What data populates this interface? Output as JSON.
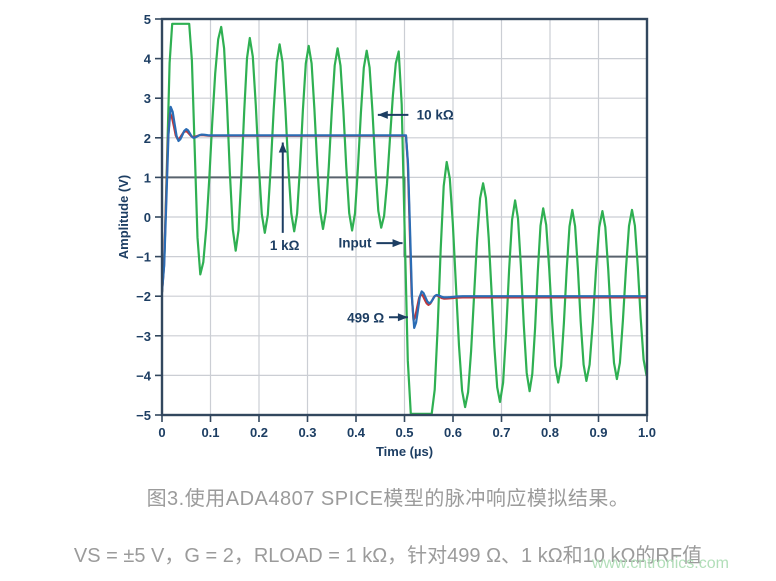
{
  "figure": {
    "caption": "图3.使用ADA4807 SPICE模型的脉冲响应模拟结果。",
    "conditions": "VS = ±5 V，G = 2，RLOAD = 1 kΩ，针对499 Ω、1 kΩ和10 kΩ的RF值",
    "watermark": "www.cntronics.com"
  },
  "chart_data": {
    "type": "line",
    "title": "",
    "xlabel": "Time (µs)",
    "ylabel": "Amplitude (V)",
    "xlim": [
      0,
      1
    ],
    "ylim": [
      -5,
      5
    ],
    "grid": true,
    "xticks": [
      "0",
      "0.1",
      "0.2",
      "0.3",
      "0.4",
      "0.5",
      "0.6",
      "0.7",
      "0.8",
      "0.9",
      "1.0"
    ],
    "xtick_values": [
      0,
      0.1,
      0.2,
      0.3,
      0.4,
      0.5,
      0.6,
      0.7,
      0.8,
      0.9,
      1.0
    ],
    "yticks": [
      "5",
      "4",
      "3",
      "2",
      "1",
      "0",
      "−1",
      "−2",
      "−3",
      "−4",
      "−5"
    ],
    "ytick_values": [
      5,
      4,
      3,
      2,
      1,
      0,
      -1,
      -2,
      -3,
      -4,
      -5
    ],
    "colors": {
      "axis_text": "#1d3e63",
      "border": "#32475e",
      "grid": "#cbced4",
      "input": "#59636d",
      "r499": "#2b6cb4",
      "r1k": "#c23639",
      "r10k": "#2fb052"
    },
    "series": [
      {
        "name": "Input",
        "color_key": "input",
        "interp": "linear",
        "width": 2,
        "knots": [
          [
            0,
            1
          ],
          [
            0.5,
            1
          ],
          [
            0.5,
            -1
          ],
          [
            1,
            -1
          ]
        ]
      },
      {
        "name": "10 kΩ",
        "color_key": "r10k",
        "interp": "cosine",
        "width": 2.2,
        "knots": [
          [
            0,
            -1.9
          ],
          [
            0.021,
            4.88
          ],
          [
            0.056,
            4.88
          ],
          [
            0.079,
            -1.45
          ],
          [
            0.122,
            4.8
          ],
          [
            0.152,
            -0.85
          ],
          [
            0.181,
            4.52
          ],
          [
            0.212,
            -0.4
          ],
          [
            0.2425,
            4.36
          ],
          [
            0.2725,
            -0.36
          ],
          [
            0.3025,
            4.32
          ],
          [
            0.332,
            -0.3
          ],
          [
            0.362,
            4.26
          ],
          [
            0.392,
            -0.34
          ],
          [
            0.422,
            4.2
          ],
          [
            0.452,
            -0.27
          ],
          [
            0.488,
            4.18
          ],
          [
            0.513,
            -4.97
          ],
          [
            0.556,
            -4.97
          ],
          [
            0.587,
            1.39
          ],
          [
            0.625,
            -4.8
          ],
          [
            0.662,
            0.85
          ],
          [
            0.697,
            -4.67
          ],
          [
            0.728,
            0.42
          ],
          [
            0.758,
            -4.4
          ],
          [
            0.786,
            0.22
          ],
          [
            0.817,
            -4.18
          ],
          [
            0.846,
            0.18
          ],
          [
            0.875,
            -4.14
          ],
          [
            0.908,
            0.15
          ],
          [
            0.938,
            -4.09
          ],
          [
            0.969,
            0.18
          ],
          [
            0.999,
            -4.0
          ]
        ]
      },
      {
        "name": "1 kΩ",
        "color_key": "r1k",
        "interp": "cosine",
        "width": 2.2,
        "knots": [
          [
            0,
            -1.9
          ],
          [
            0.0165,
            2.62
          ],
          [
            0.0325,
            1.96
          ],
          [
            0.0485,
            2.17
          ],
          [
            0.064,
            2.02
          ],
          [
            0.081,
            2.07
          ],
          [
            0.1,
            2.05
          ],
          [
            0.503,
            2.05
          ],
          [
            0.5185,
            -2.6
          ],
          [
            0.534,
            -1.95
          ],
          [
            0.5495,
            -2.22
          ],
          [
            0.565,
            -1.98
          ],
          [
            0.581,
            -2.06
          ],
          [
            0.62,
            -2.03
          ],
          [
            1,
            -2.03
          ]
        ]
      },
      {
        "name": "499 Ω",
        "color_key": "r499",
        "interp": "cosine",
        "width": 2.2,
        "knots": [
          [
            0,
            -1.9
          ],
          [
            0.018,
            2.78
          ],
          [
            0.034,
            1.92
          ],
          [
            0.05,
            2.22
          ],
          [
            0.065,
            2.0
          ],
          [
            0.082,
            2.08
          ],
          [
            0.1,
            2.06
          ],
          [
            0.503,
            2.06
          ],
          [
            0.52,
            -2.8
          ],
          [
            0.5355,
            -1.88
          ],
          [
            0.551,
            -2.18
          ],
          [
            0.566,
            -1.97
          ],
          [
            0.582,
            -2.03
          ],
          [
            0.62,
            -2.0
          ],
          [
            1,
            -2.0
          ]
        ]
      }
    ],
    "annotations": [
      {
        "id": "10k",
        "text": "10 kΩ",
        "anchor": "start",
        "tx": 0.525,
        "ty": 2.58,
        "ax1": 0.508,
        "ay1": 2.58,
        "ax2": 0.445,
        "ay2": 2.58,
        "dir": "left"
      },
      {
        "id": "1k",
        "text": "1 kΩ",
        "anchor": "middle",
        "tx": 0.253,
        "ty": -0.72,
        "ax1": 0.249,
        "ay1": -0.4,
        "ax2": 0.249,
        "ay2": 1.88,
        "dir": "up"
      },
      {
        "id": "input",
        "text": "Input",
        "anchor": "middle",
        "tx": 0.398,
        "ty": -0.66,
        "ax1": 0.442,
        "ay1": -0.66,
        "ax2": 0.496,
        "ay2": -0.66,
        "dir": "right"
      },
      {
        "id": "499",
        "text": "499 Ω",
        "anchor": "middle",
        "tx": 0.42,
        "ty": -2.55,
        "ax1": 0.468,
        "ay1": -2.53,
        "ax2": 0.507,
        "ay2": -2.53,
        "dir": "right"
      }
    ]
  }
}
